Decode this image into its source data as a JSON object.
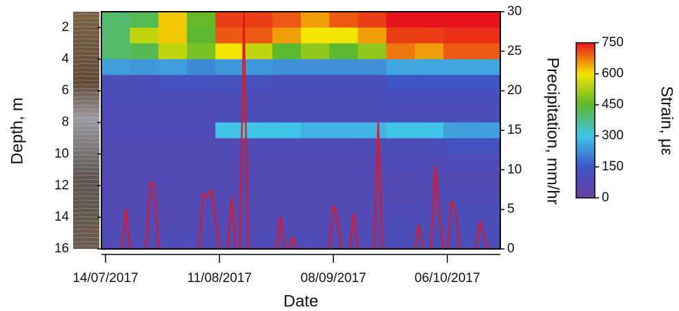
{
  "chart_data": {
    "type": "heatmap",
    "xlabel": "Date",
    "ylabel": "Depth, m",
    "y2label": "Precipitation, mm/hr",
    "colorbar_label": "Strain, με",
    "xlim": [
      "13/07/2017",
      "19/10/2017"
    ],
    "xticks": [
      "14/07/2017",
      "11/08/2017",
      "08/09/2017",
      "06/10/2017"
    ],
    "ylim": [
      1,
      16
    ],
    "y_inverted": true,
    "yticks": [
      2,
      4,
      6,
      8,
      10,
      12,
      14,
      16
    ],
    "y2lim": [
      0,
      30
    ],
    "y2ticks": [
      0,
      5,
      10,
      15,
      20,
      25,
      30
    ],
    "zlim": [
      0,
      750
    ],
    "zticks": [
      0,
      150,
      300,
      450,
      600,
      750
    ],
    "colorscale": [
      "#6b3fa0",
      "#3d55c4",
      "#40c4e8",
      "#5cb82e",
      "#f4e400",
      "#e8141c"
    ],
    "x_edges": [
      "13/07/2017",
      "20/07/2017",
      "27/07/2017",
      "03/08/2017",
      "10/08/2017",
      "17/08/2017",
      "24/08/2017",
      "31/08/2017",
      "07/09/2017",
      "14/09/2017",
      "21/09/2017",
      "28/09/2017",
      "05/10/2017",
      "12/10/2017",
      "19/10/2017"
    ],
    "y_edges": [
      1,
      2,
      3,
      4,
      5,
      6,
      7,
      8,
      9,
      10,
      11,
      12,
      13,
      14,
      15,
      16
    ],
    "z": [
      [
        400,
        420,
        620,
        460,
        720,
        720,
        700,
        650,
        700,
        720,
        750,
        750,
        750,
        750
      ],
      [
        400,
        550,
        620,
        450,
        700,
        700,
        650,
        600,
        600,
        650,
        720,
        720,
        730,
        730
      ],
      [
        400,
        420,
        550,
        480,
        600,
        550,
        450,
        500,
        450,
        500,
        680,
        650,
        700,
        700
      ],
      [
        250,
        240,
        250,
        220,
        240,
        240,
        230,
        230,
        230,
        230,
        260,
        260,
        260,
        260
      ],
      [
        100,
        100,
        130,
        130,
        120,
        120,
        110,
        110,
        110,
        110,
        150,
        150,
        150,
        150
      ],
      [
        100,
        100,
        100,
        100,
        100,
        100,
        100,
        100,
        100,
        100,
        110,
        110,
        110,
        110
      ],
      [
        90,
        90,
        90,
        90,
        100,
        100,
        100,
        100,
        100,
        100,
        100,
        100,
        100,
        100
      ],
      [
        90,
        90,
        90,
        90,
        300,
        300,
        300,
        280,
        280,
        280,
        300,
        300,
        250,
        250
      ],
      [
        80,
        80,
        80,
        80,
        90,
        90,
        90,
        90,
        90,
        90,
        100,
        100,
        130,
        130
      ],
      [
        80,
        80,
        80,
        80,
        80,
        80,
        80,
        80,
        80,
        80,
        90,
        90,
        90,
        90
      ],
      [
        80,
        80,
        80,
        80,
        80,
        80,
        80,
        80,
        80,
        80,
        80,
        80,
        80,
        80
      ],
      [
        80,
        80,
        80,
        80,
        80,
        80,
        80,
        80,
        80,
        80,
        80,
        80,
        90,
        90
      ],
      [
        80,
        80,
        80,
        80,
        80,
        80,
        80,
        80,
        80,
        80,
        90,
        90,
        100,
        100
      ],
      [
        80,
        80,
        80,
        80,
        80,
        80,
        80,
        80,
        80,
        80,
        100,
        100,
        100,
        100
      ],
      [
        90,
        90,
        90,
        90,
        90,
        90,
        90,
        90,
        90,
        90,
        100,
        100,
        100,
        100
      ]
    ],
    "series": [
      {
        "type": "line",
        "axis": "y2",
        "color": "#e8141c",
        "x": [
          "13/07/2017",
          "18/07/2017",
          "19/07/2017",
          "20/07/2017",
          "24/07/2017",
          "25/07/2017",
          "26/07/2017",
          "27/07/2017",
          "06/08/2017",
          "07/08/2017",
          "08/08/2017",
          "09/08/2017",
          "10/08/2017",
          "11/08/2017",
          "13/08/2017",
          "14/08/2017",
          "15/08/2017",
          "16/08/2017",
          "17/08/2017",
          "18/08/2017",
          "25/08/2017",
          "26/08/2017",
          "27/08/2017",
          "28/08/2017",
          "29/08/2017",
          "30/08/2017",
          "07/09/2017",
          "08/09/2017",
          "09/09/2017",
          "10/09/2017",
          "12/09/2017",
          "13/09/2017",
          "14/09/2017",
          "18/09/2017",
          "19/09/2017",
          "20/09/2017",
          "28/09/2017",
          "29/09/2017",
          "30/09/2017",
          "02/10/2017",
          "03/10/2017",
          "04/10/2017",
          "05/10/2017",
          "06/10/2017",
          "07/10/2017",
          "08/10/2017",
          "09/10/2017",
          "13/10/2017",
          "14/10/2017",
          "15/10/2017",
          "16/10/2017",
          "19/10/2017"
        ],
        "values": [
          0,
          0,
          5,
          0,
          0,
          8.5,
          8,
          0,
          0,
          7,
          6.5,
          7.5,
          4,
          0,
          0,
          6.5,
          0,
          0,
          30,
          0,
          0,
          4,
          0,
          0,
          1.5,
          0,
          0,
          5.5,
          4,
          0,
          0,
          4.5,
          0,
          0,
          16,
          0,
          0,
          3,
          0,
          0,
          10.5,
          4,
          0,
          0,
          6,
          5,
          0,
          0,
          3.5,
          1.5,
          0,
          0
        ]
      }
    ]
  }
}
